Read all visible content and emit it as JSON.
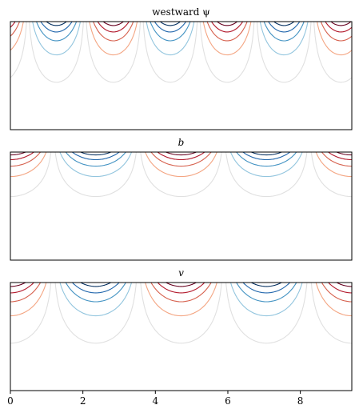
{
  "chart_data": [
    {
      "type": "contour",
      "title": "westward ψ",
      "field": "psi",
      "x_range": [
        0,
        9.42
      ],
      "xticks_shown": false,
      "yticks_shown": false,
      "wavelength": 3.14,
      "surface_intensified": true,
      "colormap": "RdBu_r"
    },
    {
      "type": "contour",
      "title": "b",
      "field": "b",
      "x_range": [
        0,
        9.42
      ],
      "xticks_shown": false,
      "yticks_shown": false,
      "wavelength": 4.71,
      "surface_intensified": true,
      "colormap": "RdBu_r"
    },
    {
      "type": "contour",
      "title": "v",
      "field": "v",
      "x_range": [
        0,
        9.42
      ],
      "xticks": [
        0,
        2,
        4,
        6,
        8
      ],
      "xtick_labels": [
        "0",
        "2",
        "4",
        "6",
        "8"
      ],
      "yticks_shown": false,
      "wavelength": 4.71,
      "surface_intensified": true,
      "colormap": "RdBu_r"
    }
  ],
  "colors": {
    "deep_red": "#67001f",
    "red": "#b2182b",
    "light_red": "#d6604d",
    "pale_red": "#f4a582",
    "faint": "#e0e0e0",
    "pale_blue": "#92c5de",
    "light_blue": "#4393c3",
    "blue": "#2166ac",
    "deep_blue": "#053061"
  }
}
